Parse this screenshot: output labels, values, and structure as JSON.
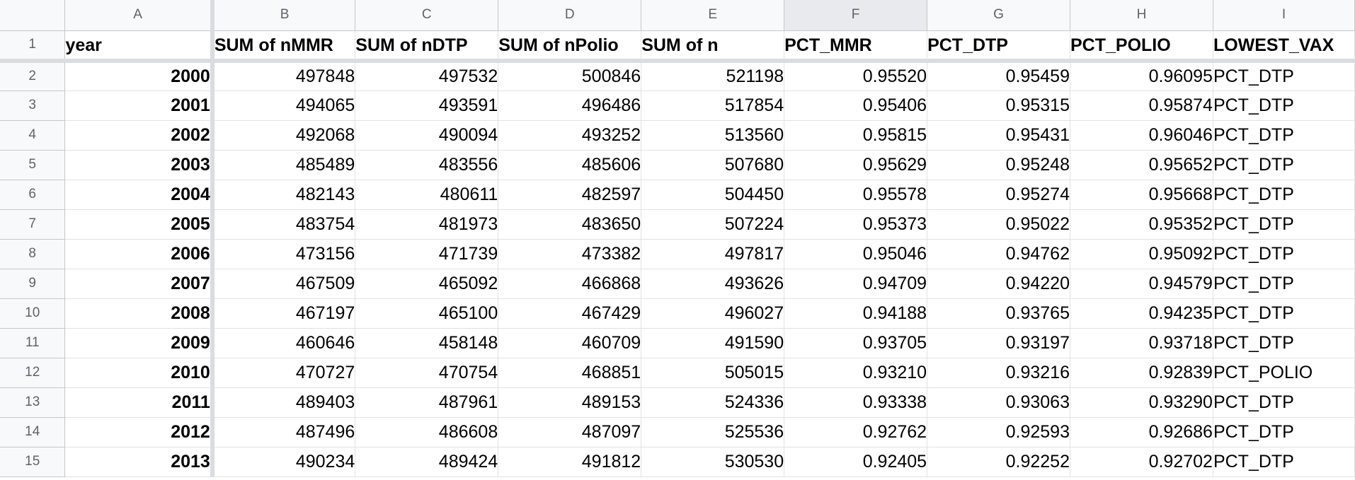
{
  "columns": [
    "A",
    "B",
    "C",
    "D",
    "E",
    "F",
    "G",
    "H",
    "I"
  ],
  "selected_column": "F",
  "header_row": {
    "row_number": "1",
    "cells": [
      "year",
      "SUM of nMMR",
      "SUM of nDTP",
      "SUM of nPolio",
      "SUM of n",
      "PCT_MMR",
      "PCT_DTP",
      "PCT_POLIO",
      "LOWEST_VAX"
    ]
  },
  "rows": [
    {
      "n": "2",
      "cells": [
        "2000",
        "497848",
        "497532",
        "500846",
        "521198",
        "0.95520",
        "0.95459",
        "0.96095",
        "PCT_DTP"
      ]
    },
    {
      "n": "3",
      "cells": [
        "2001",
        "494065",
        "493591",
        "496486",
        "517854",
        "0.95406",
        "0.95315",
        "0.95874",
        "PCT_DTP"
      ]
    },
    {
      "n": "4",
      "cells": [
        "2002",
        "492068",
        "490094",
        "493252",
        "513560",
        "0.95815",
        "0.95431",
        "0.96046",
        "PCT_DTP"
      ]
    },
    {
      "n": "5",
      "cells": [
        "2003",
        "485489",
        "483556",
        "485606",
        "507680",
        "0.95629",
        "0.95248",
        "0.95652",
        "PCT_DTP"
      ]
    },
    {
      "n": "6",
      "cells": [
        "2004",
        "482143",
        "480611",
        "482597",
        "504450",
        "0.95578",
        "0.95274",
        "0.95668",
        "PCT_DTP"
      ]
    },
    {
      "n": "7",
      "cells": [
        "2005",
        "483754",
        "481973",
        "483650",
        "507224",
        "0.95373",
        "0.95022",
        "0.95352",
        "PCT_DTP"
      ]
    },
    {
      "n": "8",
      "cells": [
        "2006",
        "473156",
        "471739",
        "473382",
        "497817",
        "0.95046",
        "0.94762",
        "0.95092",
        "PCT_DTP"
      ]
    },
    {
      "n": "9",
      "cells": [
        "2007",
        "467509",
        "465092",
        "466868",
        "493626",
        "0.94709",
        "0.94220",
        "0.94579",
        "PCT_DTP"
      ]
    },
    {
      "n": "10",
      "cells": [
        "2008",
        "467197",
        "465100",
        "467429",
        "496027",
        "0.94188",
        "0.93765",
        "0.94235",
        "PCT_DTP"
      ]
    },
    {
      "n": "11",
      "cells": [
        "2009",
        "460646",
        "458148",
        "460709",
        "491590",
        "0.93705",
        "0.93197",
        "0.93718",
        "PCT_DTP"
      ]
    },
    {
      "n": "12",
      "cells": [
        "2010",
        "470727",
        "470754",
        "468851",
        "505015",
        "0.93210",
        "0.93216",
        "0.92839",
        "PCT_POLIO"
      ]
    },
    {
      "n": "13",
      "cells": [
        "2011",
        "489403",
        "487961",
        "489153",
        "524336",
        "0.93338",
        "0.93063",
        "0.93290",
        "PCT_DTP"
      ]
    },
    {
      "n": "14",
      "cells": [
        "2012",
        "487496",
        "486608",
        "487097",
        "525536",
        "0.92762",
        "0.92593",
        "0.92686",
        "PCT_DTP"
      ]
    },
    {
      "n": "15",
      "cells": [
        "2013",
        "490234",
        "489424",
        "491812",
        "530530",
        "0.92405",
        "0.92252",
        "0.92702",
        "PCT_DTP"
      ]
    }
  ]
}
